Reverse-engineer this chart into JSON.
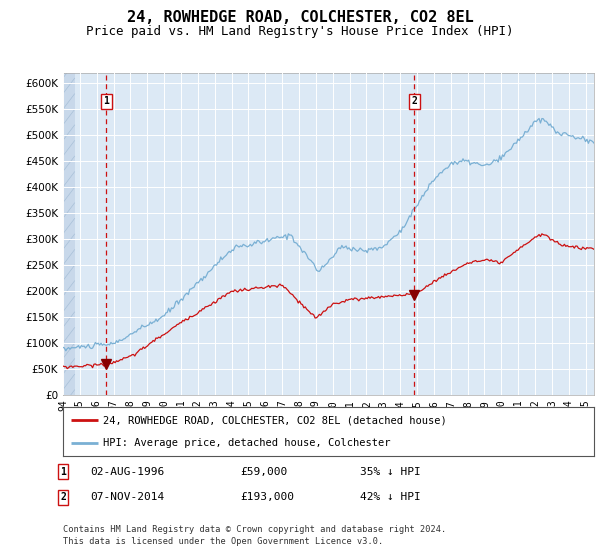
{
  "title": "24, ROWHEDGE ROAD, COLCHESTER, CO2 8EL",
  "subtitle": "Price paid vs. HM Land Registry's House Price Index (HPI)",
  "title_fontsize": 11,
  "subtitle_fontsize": 9,
  "fig_bg_color": "#ffffff",
  "plot_bg_color": "#dce9f5",
  "grid_color": "#ffffff",
  "ylim": [
    0,
    620000
  ],
  "line1_color": "#cc1111",
  "line2_color": "#7ab0d4",
  "vline_color": "#cc1111",
  "marker_color": "#880000",
  "sale1_price": 59000,
  "sale1_x": 1996.58,
  "sale2_price": 193000,
  "sale2_x": 2014.84,
  "sale1_date": "02-AUG-1996",
  "sale1_note": "35% ↓ HPI",
  "sale2_date": "07-NOV-2014",
  "sale2_note": "42% ↓ HPI",
  "legend1_label": "24, ROWHEDGE ROAD, COLCHESTER, CO2 8EL (detached house)",
  "legend2_label": "HPI: Average price, detached house, Colchester",
  "footer": "Contains HM Land Registry data © Crown copyright and database right 2024.\nThis data is licensed under the Open Government Licence v3.0.",
  "xlim_left": 1994.0,
  "xlim_right": 2025.5
}
